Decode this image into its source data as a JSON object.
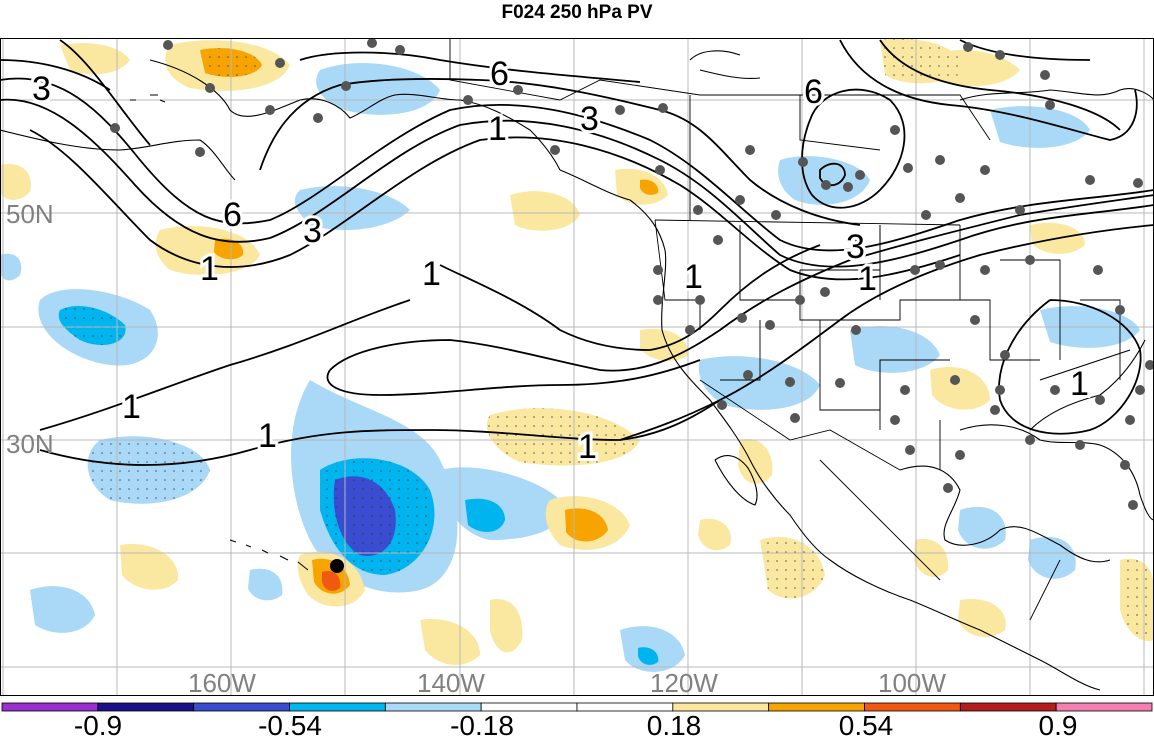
{
  "title": "F024 250 hPa PV",
  "latitude_labels": [
    "50N",
    "30N"
  ],
  "longitude_labels": [
    "160W",
    "140W",
    "120W",
    "100W"
  ],
  "contour_labels": [
    "3",
    "6",
    "6",
    "3",
    "1",
    "1",
    "3",
    "6",
    "1",
    "3",
    "1",
    "1",
    "1",
    "1",
    "1",
    "1"
  ],
  "colorbar": {
    "colors": [
      "#9b30d0",
      "#1b0f8c",
      "#3a4ccf",
      "#00b4f0",
      "#a9d9f7",
      "#ffffff",
      "#ffffff",
      "#fbe8a0",
      "#f8a400",
      "#f05a10",
      "#b41e1e",
      "#f57fb0"
    ],
    "tick_labels": [
      "-0.9",
      "-0.54",
      "-0.18",
      "0.18",
      "0.54",
      "0.9"
    ]
  },
  "legend_colors": {
    "light_blue": "#a9d9f7",
    "cyan": "#00b4f0",
    "blue": "#3a4ccf",
    "light_yellow": "#fbe8a0",
    "orange": "#f8a400",
    "red_orange": "#f05a10"
  }
}
